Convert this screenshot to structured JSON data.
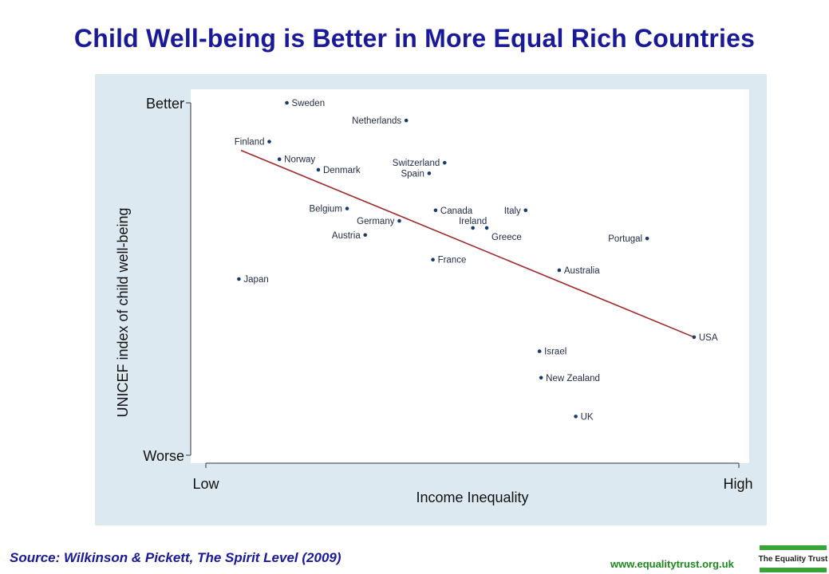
{
  "page": {
    "title": "Child Well-being is Better in More Equal Rich Countries",
    "source": "Source: Wilkinson & Pickett, The Spirit Level (2009)",
    "website": "www.equalitytrust.org.uk",
    "logo_text": "The Equality Trust"
  },
  "colors": {
    "title": "#1a1a99",
    "panel": "#dde9f0",
    "points": "#1a3a6b",
    "fit_line": "#a0282a",
    "website": "#1a8a1a",
    "logo_green": "#3aa33a"
  },
  "chart_data": {
    "type": "scatter",
    "title": "",
    "xlabel": "Income Inequality",
    "ylabel": "UNICEF index of child well-being",
    "x_tick_labels": [
      "Low",
      "High"
    ],
    "y_tick_labels": [
      "Better",
      "Worse"
    ],
    "xlim": [
      0,
      100
    ],
    "ylim": [
      0,
      100
    ],
    "grid": false,
    "legend": "none",
    "points": [
      {
        "label": "Sweden",
        "x": 15.2,
        "y": 100.0,
        "label_pos": "right"
      },
      {
        "label": "Netherlands",
        "x": 37.6,
        "y": 95.0,
        "label_pos": "left"
      },
      {
        "label": "Finland",
        "x": 11.9,
        "y": 89.0,
        "label_pos": "left"
      },
      {
        "label": "Norway",
        "x": 13.8,
        "y": 84.0,
        "label_pos": "right"
      },
      {
        "label": "Denmark",
        "x": 21.1,
        "y": 81.0,
        "label_pos": "right"
      },
      {
        "label": "Switzerland",
        "x": 44.8,
        "y": 83.0,
        "label_pos": "left"
      },
      {
        "label": "Spain",
        "x": 41.9,
        "y": 80.0,
        "label_pos": "left"
      },
      {
        "label": "Belgium",
        "x": 26.5,
        "y": 70.0,
        "label_pos": "left"
      },
      {
        "label": "Canada",
        "x": 43.1,
        "y": 69.5,
        "label_pos": "right"
      },
      {
        "label": "Italy",
        "x": 60.0,
        "y": 69.5,
        "label_pos": "left"
      },
      {
        "label": "Germany",
        "x": 36.3,
        "y": 66.5,
        "label_pos": "left"
      },
      {
        "label": "Ireland",
        "x": 50.1,
        "y": 64.5,
        "label_pos": "above"
      },
      {
        "label": "Greece",
        "x": 52.7,
        "y": 64.5,
        "label_pos": "below"
      },
      {
        "label": "Austria",
        "x": 29.9,
        "y": 62.5,
        "label_pos": "left"
      },
      {
        "label": "Portugal",
        "x": 82.8,
        "y": 61.5,
        "label_pos": "left"
      },
      {
        "label": "France",
        "x": 42.6,
        "y": 55.5,
        "label_pos": "right"
      },
      {
        "label": "Australia",
        "x": 66.3,
        "y": 52.5,
        "label_pos": "right"
      },
      {
        "label": "Japan",
        "x": 6.2,
        "y": 50.0,
        "label_pos": "right"
      },
      {
        "label": "USA",
        "x": 91.6,
        "y": 33.5,
        "label_pos": "right"
      },
      {
        "label": "Israel",
        "x": 62.6,
        "y": 29.5,
        "label_pos": "right"
      },
      {
        "label": "New Zealand",
        "x": 62.9,
        "y": 22.0,
        "label_pos": "right"
      },
      {
        "label": "UK",
        "x": 69.4,
        "y": 11.0,
        "label_pos": "right"
      }
    ],
    "fit_line": {
      "x": [
        6.6,
        91.6
      ],
      "y": [
        86.5,
        33.5
      ]
    }
  }
}
